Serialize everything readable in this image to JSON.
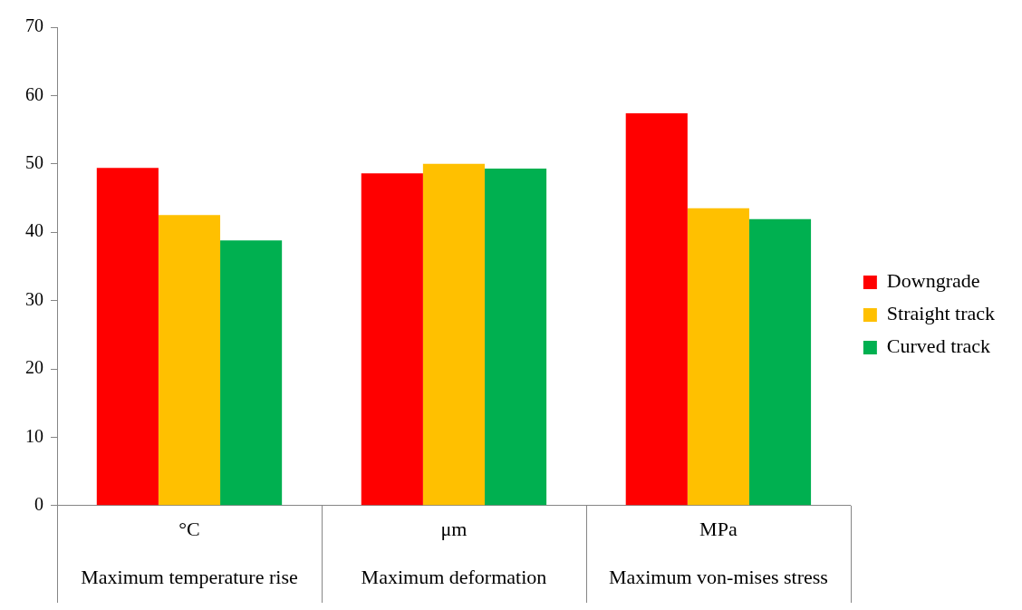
{
  "chart_data": {
    "type": "bar",
    "categories": [
      "°C\nMaximum temperature rise",
      "μm\nMaximum deformation",
      "MPa\nMaximum von-mises stress"
    ],
    "series": [
      {
        "name": "Downgrade",
        "color": "#ff0000",
        "values": [
          49.4,
          48.6,
          57.4
        ]
      },
      {
        "name": "Straight track",
        "color": "#ffc000",
        "values": [
          42.5,
          50.0,
          43.5
        ]
      },
      {
        "name": "Curved track",
        "color": "#00b050",
        "values": [
          38.8,
          49.3,
          41.9
        ]
      }
    ],
    "ylim": [
      0,
      70
    ],
    "yticks": [
      0,
      10,
      20,
      30,
      40,
      50,
      60,
      70
    ],
    "grid": false,
    "legend": "right"
  }
}
